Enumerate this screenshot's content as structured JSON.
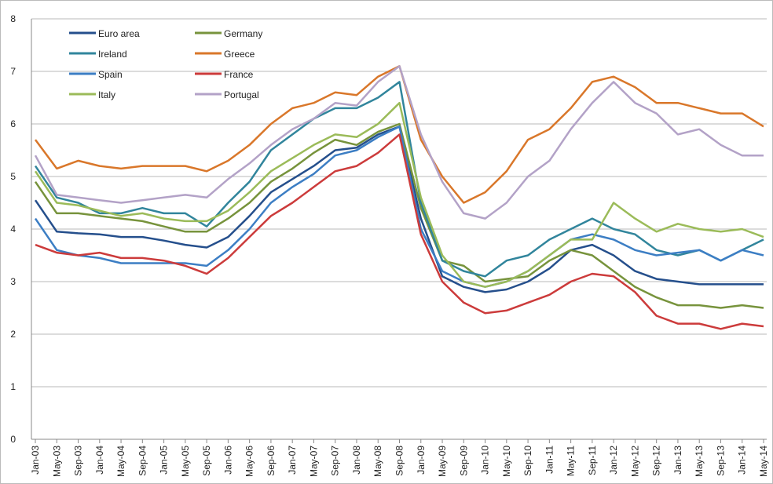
{
  "chart_data": {
    "type": "line",
    "categories": [
      "Jan-03",
      "May-03",
      "Sep-03",
      "Jan-04",
      "May-04",
      "Sep-04",
      "Jan-05",
      "May-05",
      "Sep-05",
      "Jan-06",
      "May-06",
      "Sep-06",
      "Jan-07",
      "May-07",
      "Sep-07",
      "Jan-08",
      "May-08",
      "Sep-08",
      "Jan-09",
      "May-09",
      "Sep-09",
      "Jan-10",
      "May-10",
      "Sep-10",
      "Jan-11",
      "May-11",
      "Sep-11",
      "Jan-12",
      "May-12",
      "Sep-12",
      "Jan-13",
      "May-13",
      "Sep-13",
      "Jan-14",
      "May-14"
    ],
    "series": [
      {
        "name": "Euro area",
        "color": "#254f8c",
        "values": [
          4.55,
          3.95,
          3.92,
          3.9,
          3.85,
          3.85,
          3.78,
          3.7,
          3.65,
          3.85,
          4.25,
          4.7,
          4.95,
          5.2,
          5.5,
          5.55,
          5.8,
          5.95,
          4.2,
          3.1,
          2.9,
          2.8,
          2.85,
          3.0,
          3.25,
          3.6,
          3.7,
          3.5,
          3.2,
          3.05,
          3.0,
          2.95,
          2.95,
          2.95,
          2.95
        ]
      },
      {
        "name": "Germany",
        "color": "#77933c",
        "values": [
          4.9,
          4.3,
          4.3,
          4.25,
          4.2,
          4.15,
          4.05,
          3.95,
          3.95,
          4.2,
          4.5,
          4.9,
          5.15,
          5.45,
          5.7,
          5.6,
          5.85,
          6.0,
          4.4,
          3.4,
          3.3,
          3.0,
          3.05,
          3.1,
          3.4,
          3.6,
          3.5,
          3.2,
          2.9,
          2.7,
          2.55,
          2.55,
          2.5,
          2.55,
          2.5
        ]
      },
      {
        "name": "Ireland",
        "color": "#31859c",
        "values": [
          5.2,
          4.6,
          4.5,
          4.3,
          4.3,
          4.4,
          4.3,
          4.3,
          4.05,
          4.5,
          4.9,
          5.5,
          5.8,
          6.1,
          6.3,
          6.3,
          6.5,
          6.8,
          4.5,
          3.4,
          3.2,
          3.1,
          3.4,
          3.5,
          3.8,
          4.0,
          4.2,
          4.0,
          3.9,
          3.6,
          3.5,
          3.6,
          3.4,
          3.6,
          3.8
        ]
      },
      {
        "name": "Greece",
        "color": "#d9772a",
        "values": [
          5.7,
          5.15,
          5.3,
          5.2,
          5.15,
          5.2,
          5.2,
          5.2,
          5.1,
          5.3,
          5.6,
          6.0,
          6.3,
          6.4,
          6.6,
          6.55,
          6.9,
          7.1,
          5.7,
          5.0,
          4.5,
          4.7,
          5.1,
          5.7,
          5.9,
          6.3,
          6.8,
          6.9,
          6.7,
          6.4,
          6.4,
          6.3,
          6.2,
          6.2,
          5.95
        ]
      },
      {
        "name": "Spain",
        "color": "#3c7ec4",
        "values": [
          4.2,
          3.6,
          3.5,
          3.45,
          3.35,
          3.35,
          3.35,
          3.35,
          3.3,
          3.6,
          4.0,
          4.5,
          4.8,
          5.05,
          5.4,
          5.5,
          5.75,
          5.95,
          4.0,
          3.2,
          3.0,
          2.9,
          3.0,
          3.2,
          3.5,
          3.8,
          3.9,
          3.8,
          3.6,
          3.5,
          3.55,
          3.6,
          3.4,
          3.6,
          3.5
        ]
      },
      {
        "name": "France",
        "color": "#cc3b3b",
        "values": [
          3.7,
          3.55,
          3.5,
          3.55,
          3.45,
          3.45,
          3.4,
          3.3,
          3.15,
          3.45,
          3.85,
          4.25,
          4.5,
          4.8,
          5.1,
          5.2,
          5.45,
          5.8,
          3.9,
          3.0,
          2.6,
          2.4,
          2.45,
          2.6,
          2.75,
          3.0,
          3.15,
          3.1,
          2.8,
          2.35,
          2.2,
          2.2,
          2.1,
          2.2,
          2.15
        ]
      },
      {
        "name": "Italy",
        "color": "#9bbb59",
        "values": [
          5.1,
          4.5,
          4.45,
          4.35,
          4.25,
          4.3,
          4.2,
          4.15,
          4.15,
          4.35,
          4.7,
          5.1,
          5.35,
          5.6,
          5.8,
          5.75,
          6.0,
          6.4,
          4.6,
          3.5,
          3.0,
          2.9,
          3.0,
          3.2,
          3.5,
          3.8,
          3.8,
          4.5,
          4.2,
          3.95,
          4.1,
          4.0,
          3.95,
          4.0,
          3.85
        ]
      },
      {
        "name": "Portugal",
        "color": "#b3a2c7",
        "values": [
          5.4,
          4.65,
          4.6,
          4.55,
          4.5,
          4.55,
          4.6,
          4.65,
          4.6,
          4.95,
          5.25,
          5.6,
          5.9,
          6.1,
          6.4,
          6.35,
          6.8,
          7.1,
          5.8,
          4.9,
          4.3,
          4.2,
          4.5,
          5.0,
          5.3,
          5.9,
          6.4,
          6.8,
          6.4,
          6.2,
          5.8,
          5.9,
          5.6,
          5.4,
          5.4
        ]
      }
    ],
    "ylim": [
      0,
      8
    ],
    "yticks": [
      0,
      1,
      2,
      3,
      4,
      5,
      6,
      7,
      8
    ],
    "grid": true
  }
}
